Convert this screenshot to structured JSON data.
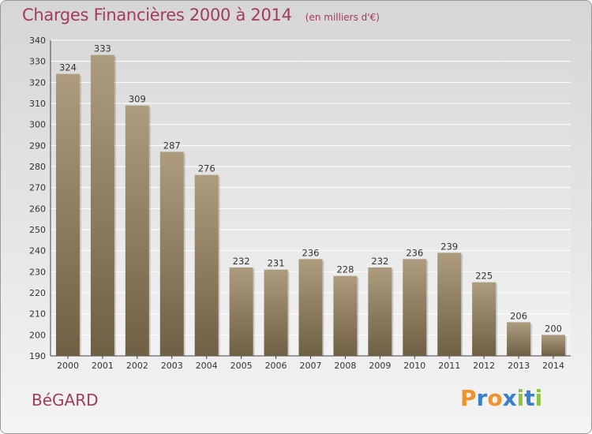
{
  "title": "Charges Financières 2000 à 2014",
  "subtitle": "(en milliers d'€)",
  "place": "BéGARD",
  "logo": {
    "letters": [
      {
        "ch": "P",
        "color": "#f0932b"
      },
      {
        "ch": "r",
        "color": "#3a7fc9"
      },
      {
        "ch": "o",
        "color": "#f0932b"
      },
      {
        "ch": "x",
        "color": "#3a7fc9"
      },
      {
        "ch": "i",
        "color": "#8cc63f"
      },
      {
        "ch": "t",
        "color": "#3a7fc9"
      },
      {
        "ch": "i",
        "color": "#8cc63f"
      }
    ]
  },
  "chart_data": {
    "type": "bar",
    "categories": [
      "2000",
      "2001",
      "2002",
      "2003",
      "2004",
      "2005",
      "2006",
      "2007",
      "2008",
      "2009",
      "2010",
      "2011",
      "2012",
      "2013",
      "2014"
    ],
    "values": [
      324,
      333,
      309,
      287,
      276,
      232,
      231,
      236,
      228,
      232,
      236,
      239,
      225,
      206,
      200
    ],
    "ylim": [
      190,
      340
    ],
    "yticks": [
      190,
      200,
      210,
      220,
      230,
      240,
      250,
      260,
      270,
      280,
      290,
      300,
      310,
      320,
      330,
      340
    ],
    "grid": true,
    "bar_color": "#8c7a5c"
  }
}
